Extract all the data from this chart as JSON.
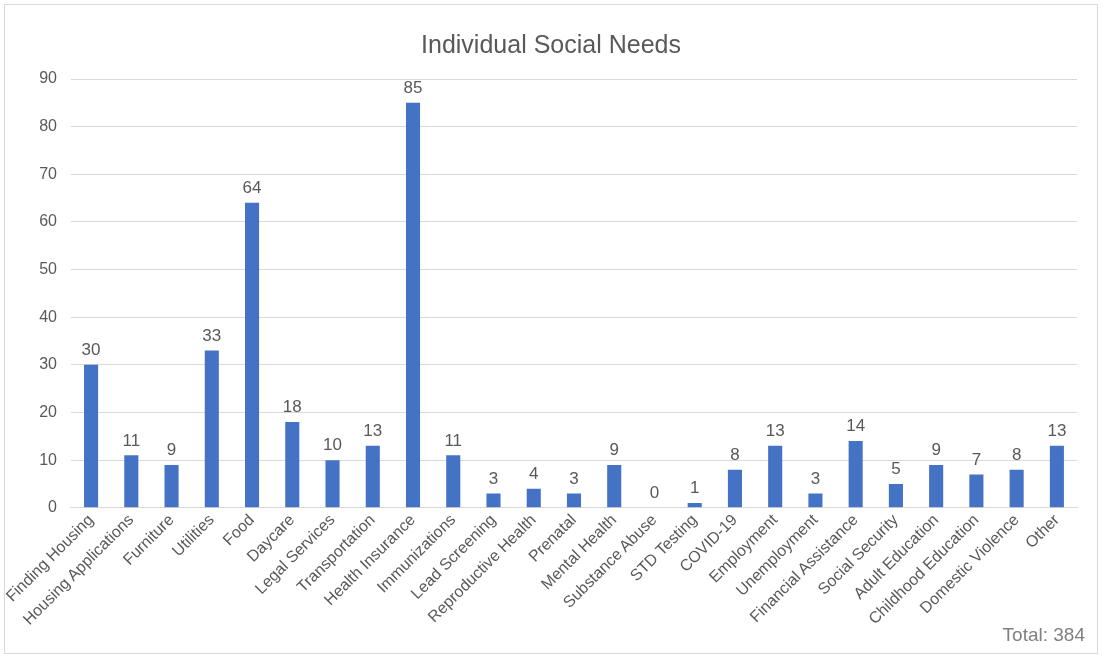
{
  "chart_data": {
    "type": "bar",
    "title": "Individual Social Needs",
    "categories": [
      "Finding Housing",
      "Housing Applications",
      "Furniture",
      "Utilities",
      "Food",
      "Daycare",
      "Legal Services",
      "Transportation",
      "Health Insurance",
      "Immunizations",
      "Lead Screening",
      "Reproductive Health",
      "Prenatal",
      "Mental Health",
      "Substance Abuse",
      "STD Testing",
      "COVID-19",
      "Employment",
      "Unemployment",
      "Financial Assistance",
      "Social Security",
      "Adult Education",
      "Childhood Education",
      "Domestic Violence",
      "Other"
    ],
    "values": [
      30,
      11,
      9,
      33,
      64,
      18,
      10,
      13,
      85,
      11,
      3,
      4,
      3,
      9,
      0,
      1,
      8,
      13,
      3,
      14,
      5,
      9,
      7,
      8,
      13
    ],
    "color": "#4472c4",
    "ylim": [
      0,
      90
    ],
    "yticks": [
      0,
      10,
      20,
      30,
      40,
      50,
      60,
      70,
      80,
      90
    ],
    "grid": "y",
    "data_labels": true,
    "annotations": [
      "Total: 384"
    ]
  }
}
